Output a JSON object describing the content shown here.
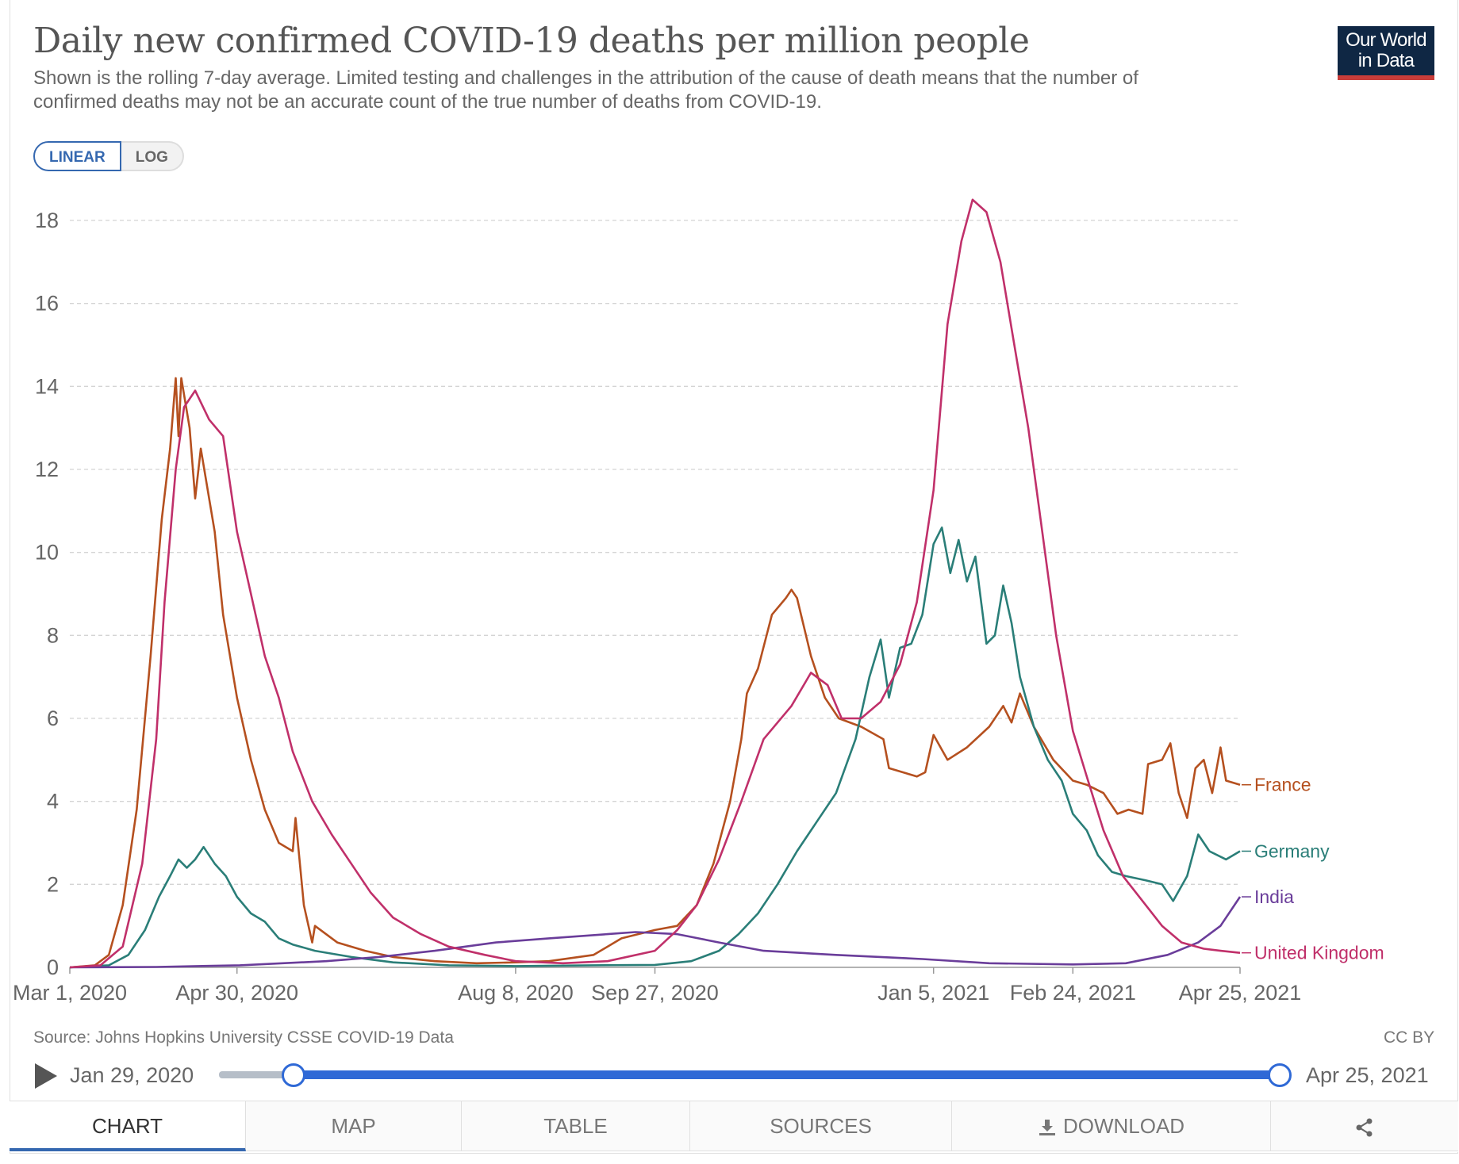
{
  "header": {
    "title": "Daily new confirmed COVID-19 deaths per million people",
    "subtitle": "Shown is the rolling 7-day average. Limited testing and challenges in the attribution of the cause of death means that the number of confirmed deaths may not be an accurate count of the true number of deaths from COVID-19.",
    "logo_line1": "Our World",
    "logo_line2": "in Data",
    "logo_bg": "#0f2744",
    "logo_accent": "#c93d3a"
  },
  "scale_toggle": {
    "linear_label": "LINEAR",
    "log_label": "LOG",
    "selected": "linear"
  },
  "chart_data": {
    "type": "line",
    "x_start": "2020-03-01",
    "x_end": "2021-04-25",
    "ylim": [
      0,
      18
    ],
    "y_ticks": [
      0,
      2,
      4,
      6,
      8,
      10,
      12,
      14,
      16,
      18
    ],
    "x_ticks": [
      {
        "date": "2020-03-01",
        "label": "Mar 1, 2020"
      },
      {
        "date": "2020-04-30",
        "label": "Apr 30, 2020"
      },
      {
        "date": "2020-08-08",
        "label": "Aug 8, 2020"
      },
      {
        "date": "2020-09-27",
        "label": "Sep 27, 2020"
      },
      {
        "date": "2021-01-05",
        "label": "Jan 5, 2021"
      },
      {
        "date": "2021-02-24",
        "label": "Feb 24, 2021"
      },
      {
        "date": "2021-04-25",
        "label": "Apr 25, 2021"
      }
    ],
    "grid": true,
    "series": [
      {
        "name": "France",
        "color": "#b5501f",
        "points": [
          [
            "2020-03-01",
            0
          ],
          [
            "2020-03-10",
            0.05
          ],
          [
            "2020-03-15",
            0.3
          ],
          [
            "2020-03-20",
            1.5
          ],
          [
            "2020-03-25",
            3.8
          ],
          [
            "2020-03-30",
            7.5
          ],
          [
            "2020-04-03",
            10.8
          ],
          [
            "2020-04-06",
            12.5
          ],
          [
            "2020-04-08",
            14.2
          ],
          [
            "2020-04-09",
            12.8
          ],
          [
            "2020-04-10",
            14.2
          ],
          [
            "2020-04-13",
            13.0
          ],
          [
            "2020-04-15",
            11.3
          ],
          [
            "2020-04-17",
            12.5
          ],
          [
            "2020-04-22",
            10.5
          ],
          [
            "2020-04-25",
            8.5
          ],
          [
            "2020-04-30",
            6.5
          ],
          [
            "2020-05-05",
            5.0
          ],
          [
            "2020-05-10",
            3.8
          ],
          [
            "2020-05-15",
            3.0
          ],
          [
            "2020-05-20",
            2.8
          ],
          [
            "2020-05-21",
            3.6
          ],
          [
            "2020-05-24",
            1.5
          ],
          [
            "2020-05-27",
            0.6
          ],
          [
            "2020-05-28",
            1.0
          ],
          [
            "2020-06-05",
            0.6
          ],
          [
            "2020-06-15",
            0.4
          ],
          [
            "2020-06-25",
            0.25
          ],
          [
            "2020-07-10",
            0.15
          ],
          [
            "2020-07-25",
            0.1
          ],
          [
            "2020-08-08",
            0.12
          ],
          [
            "2020-08-20",
            0.15
          ],
          [
            "2020-09-05",
            0.3
          ],
          [
            "2020-09-15",
            0.7
          ],
          [
            "2020-09-27",
            0.9
          ],
          [
            "2020-10-05",
            1.0
          ],
          [
            "2020-10-12",
            1.5
          ],
          [
            "2020-10-18",
            2.5
          ],
          [
            "2020-10-24",
            4.0
          ],
          [
            "2020-10-28",
            5.5
          ],
          [
            "2020-10-30",
            6.6
          ],
          [
            "2020-11-03",
            7.2
          ],
          [
            "2020-11-08",
            8.5
          ],
          [
            "2020-11-13",
            8.9
          ],
          [
            "2020-11-15",
            9.1
          ],
          [
            "2020-11-17",
            8.9
          ],
          [
            "2020-11-22",
            7.5
          ],
          [
            "2020-11-27",
            6.5
          ],
          [
            "2020-12-02",
            6.0
          ],
          [
            "2020-12-10",
            5.8
          ],
          [
            "2020-12-18",
            5.5
          ],
          [
            "2020-12-20",
            4.8
          ],
          [
            "2020-12-25",
            4.7
          ],
          [
            "2020-12-30",
            4.6
          ],
          [
            "2021-01-02",
            4.7
          ],
          [
            "2021-01-05",
            5.6
          ],
          [
            "2021-01-10",
            5.0
          ],
          [
            "2021-01-17",
            5.3
          ],
          [
            "2021-01-25",
            5.8
          ],
          [
            "2021-01-30",
            6.3
          ],
          [
            "2021-02-02",
            5.9
          ],
          [
            "2021-02-05",
            6.6
          ],
          [
            "2021-02-10",
            5.8
          ],
          [
            "2021-02-17",
            5.0
          ],
          [
            "2021-02-24",
            4.5
          ],
          [
            "2021-03-01",
            4.4
          ],
          [
            "2021-03-07",
            4.2
          ],
          [
            "2021-03-12",
            3.7
          ],
          [
            "2021-03-16",
            3.8
          ],
          [
            "2021-03-21",
            3.7
          ],
          [
            "2021-03-23",
            4.9
          ],
          [
            "2021-03-28",
            5.0
          ],
          [
            "2021-03-31",
            5.4
          ],
          [
            "2021-04-03",
            4.2
          ],
          [
            "2021-04-06",
            3.6
          ],
          [
            "2021-04-09",
            4.8
          ],
          [
            "2021-04-12",
            5.0
          ],
          [
            "2021-04-15",
            4.2
          ],
          [
            "2021-04-18",
            5.3
          ],
          [
            "2021-04-20",
            4.5
          ],
          [
            "2021-04-25",
            4.4
          ]
        ]
      },
      {
        "name": "Germany",
        "color": "#2a7e78",
        "points": [
          [
            "2020-03-01",
            0
          ],
          [
            "2020-03-15",
            0.05
          ],
          [
            "2020-03-22",
            0.3
          ],
          [
            "2020-03-28",
            0.9
          ],
          [
            "2020-04-02",
            1.7
          ],
          [
            "2020-04-06",
            2.2
          ],
          [
            "2020-04-09",
            2.6
          ],
          [
            "2020-04-12",
            2.4
          ],
          [
            "2020-04-15",
            2.6
          ],
          [
            "2020-04-18",
            2.9
          ],
          [
            "2020-04-22",
            2.5
          ],
          [
            "2020-04-26",
            2.2
          ],
          [
            "2020-04-30",
            1.7
          ],
          [
            "2020-05-05",
            1.3
          ],
          [
            "2020-05-10",
            1.1
          ],
          [
            "2020-05-15",
            0.7
          ],
          [
            "2020-05-20",
            0.55
          ],
          [
            "2020-05-28",
            0.4
          ],
          [
            "2020-06-10",
            0.25
          ],
          [
            "2020-06-25",
            0.12
          ],
          [
            "2020-07-15",
            0.05
          ],
          [
            "2020-08-08",
            0.03
          ],
          [
            "2020-09-05",
            0.05
          ],
          [
            "2020-09-27",
            0.06
          ],
          [
            "2020-10-10",
            0.15
          ],
          [
            "2020-10-20",
            0.4
          ],
          [
            "2020-10-27",
            0.8
          ],
          [
            "2020-11-03",
            1.3
          ],
          [
            "2020-11-10",
            2.0
          ],
          [
            "2020-11-17",
            2.8
          ],
          [
            "2020-11-24",
            3.5
          ],
          [
            "2020-12-01",
            4.2
          ],
          [
            "2020-12-08",
            5.5
          ],
          [
            "2020-12-13",
            7.0
          ],
          [
            "2020-12-17",
            7.9
          ],
          [
            "2020-12-20",
            6.5
          ],
          [
            "2020-12-24",
            7.7
          ],
          [
            "2020-12-28",
            7.8
          ],
          [
            "2021-01-01",
            8.5
          ],
          [
            "2021-01-05",
            10.2
          ],
          [
            "2021-01-08",
            10.6
          ],
          [
            "2021-01-11",
            9.5
          ],
          [
            "2021-01-14",
            10.3
          ],
          [
            "2021-01-17",
            9.3
          ],
          [
            "2021-01-20",
            9.9
          ],
          [
            "2021-01-24",
            7.8
          ],
          [
            "2021-01-27",
            8.0
          ],
          [
            "2021-01-30",
            9.2
          ],
          [
            "2021-02-02",
            8.3
          ],
          [
            "2021-02-05",
            7.0
          ],
          [
            "2021-02-10",
            5.8
          ],
          [
            "2021-02-15",
            5.0
          ],
          [
            "2021-02-20",
            4.5
          ],
          [
            "2021-02-24",
            3.7
          ],
          [
            "2021-03-01",
            3.3
          ],
          [
            "2021-03-05",
            2.7
          ],
          [
            "2021-03-10",
            2.3
          ],
          [
            "2021-03-15",
            2.2
          ],
          [
            "2021-03-22",
            2.1
          ],
          [
            "2021-03-28",
            2.0
          ],
          [
            "2021-04-01",
            1.6
          ],
          [
            "2021-04-06",
            2.2
          ],
          [
            "2021-04-10",
            3.2
          ],
          [
            "2021-04-14",
            2.8
          ],
          [
            "2021-04-20",
            2.6
          ],
          [
            "2021-04-25",
            2.8
          ]
        ]
      },
      {
        "name": "India",
        "color": "#6a3d9a",
        "points": [
          [
            "2020-03-01",
            0
          ],
          [
            "2020-04-01",
            0.01
          ],
          [
            "2020-05-01",
            0.05
          ],
          [
            "2020-06-01",
            0.15
          ],
          [
            "2020-06-20",
            0.25
          ],
          [
            "2020-07-10",
            0.4
          ],
          [
            "2020-08-01",
            0.6
          ],
          [
            "2020-08-20",
            0.7
          ],
          [
            "2020-09-10",
            0.8
          ],
          [
            "2020-09-20",
            0.85
          ],
          [
            "2020-10-05",
            0.8
          ],
          [
            "2020-10-20",
            0.6
          ],
          [
            "2020-11-05",
            0.4
          ],
          [
            "2020-12-01",
            0.3
          ],
          [
            "2021-01-01",
            0.2
          ],
          [
            "2021-01-25",
            0.1
          ],
          [
            "2021-02-24",
            0.07
          ],
          [
            "2021-03-15",
            0.1
          ],
          [
            "2021-03-30",
            0.3
          ],
          [
            "2021-04-10",
            0.6
          ],
          [
            "2021-04-18",
            1.0
          ],
          [
            "2021-04-25",
            1.7
          ]
        ]
      },
      {
        "name": "United Kingdom",
        "color": "#c0306a",
        "points": [
          [
            "2020-03-01",
            0
          ],
          [
            "2020-03-12",
            0.05
          ],
          [
            "2020-03-20",
            0.5
          ],
          [
            "2020-03-27",
            2.5
          ],
          [
            "2020-04-01",
            5.5
          ],
          [
            "2020-04-04",
            8.8
          ],
          [
            "2020-04-08",
            12.0
          ],
          [
            "2020-04-11",
            13.5
          ],
          [
            "2020-04-15",
            13.9
          ],
          [
            "2020-04-20",
            13.2
          ],
          [
            "2020-04-25",
            12.8
          ],
          [
            "2020-04-30",
            10.5
          ],
          [
            "2020-05-05",
            9.0
          ],
          [
            "2020-05-10",
            7.5
          ],
          [
            "2020-05-15",
            6.5
          ],
          [
            "2020-05-20",
            5.2
          ],
          [
            "2020-05-27",
            4.0
          ],
          [
            "2020-06-03",
            3.2
          ],
          [
            "2020-06-10",
            2.5
          ],
          [
            "2020-06-17",
            1.8
          ],
          [
            "2020-06-25",
            1.2
          ],
          [
            "2020-07-05",
            0.8
          ],
          [
            "2020-07-15",
            0.5
          ],
          [
            "2020-07-28",
            0.3
          ],
          [
            "2020-08-08",
            0.15
          ],
          [
            "2020-08-25",
            0.1
          ],
          [
            "2020-09-10",
            0.15
          ],
          [
            "2020-09-27",
            0.4
          ],
          [
            "2020-10-05",
            0.9
          ],
          [
            "2020-10-12",
            1.5
          ],
          [
            "2020-10-20",
            2.6
          ],
          [
            "2020-10-28",
            4.0
          ],
          [
            "2020-11-05",
            5.5
          ],
          [
            "2020-11-15",
            6.3
          ],
          [
            "2020-11-22",
            7.1
          ],
          [
            "2020-11-28",
            6.8
          ],
          [
            "2020-12-03",
            6.0
          ],
          [
            "2020-12-10",
            6.0
          ],
          [
            "2020-12-17",
            6.4
          ],
          [
            "2020-12-24",
            7.3
          ],
          [
            "2020-12-30",
            8.8
          ],
          [
            "2021-01-05",
            11.5
          ],
          [
            "2021-01-10",
            15.5
          ],
          [
            "2021-01-15",
            17.5
          ],
          [
            "2021-01-19",
            18.5
          ],
          [
            "2021-01-24",
            18.2
          ],
          [
            "2021-01-29",
            17.0
          ],
          [
            "2021-02-03",
            15.0
          ],
          [
            "2021-02-08",
            13.0
          ],
          [
            "2021-02-13",
            10.5
          ],
          [
            "2021-02-18",
            8.0
          ],
          [
            "2021-02-24",
            5.7
          ],
          [
            "2021-03-01",
            4.6
          ],
          [
            "2021-03-07",
            3.3
          ],
          [
            "2021-03-14",
            2.2
          ],
          [
            "2021-03-21",
            1.6
          ],
          [
            "2021-03-28",
            1.0
          ],
          [
            "2021-04-04",
            0.6
          ],
          [
            "2021-04-12",
            0.45
          ],
          [
            "2021-04-18",
            0.4
          ],
          [
            "2021-04-25",
            0.35
          ]
        ]
      }
    ]
  },
  "footer": {
    "source": "Source: Johns Hopkins University CSSE COVID-19 Data",
    "license": "CC BY"
  },
  "timeline": {
    "start_label": "Jan 29, 2020",
    "end_label": "Apr 25, 2021"
  },
  "tabs": {
    "chart": "CHART",
    "map": "MAP",
    "table": "TABLE",
    "sources": "SOURCES",
    "download": "DOWNLOAD"
  }
}
